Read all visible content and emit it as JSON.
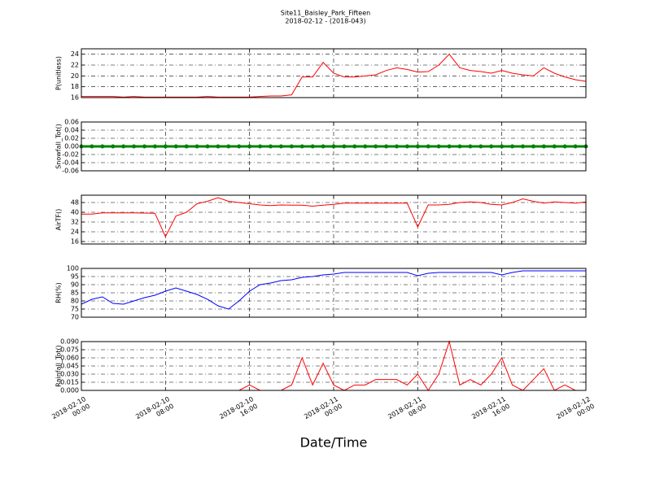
{
  "header": {
    "title": "Site11_Baisley_Park_Fifteen",
    "subtitle": "2018-02-12 - (2018-043)",
    "xlabel": "Date/Time"
  },
  "chart_data": [
    {
      "type": "line",
      "ylabel": "P(unitless)",
      "color": "#ff0000",
      "grid": true,
      "x": [
        0,
        1,
        2,
        3,
        4,
        5,
        6,
        7,
        8,
        9,
        10,
        11,
        12,
        13,
        14,
        15,
        16,
        17,
        18,
        19,
        20,
        21,
        22,
        23,
        24,
        25,
        26,
        27,
        28,
        29,
        30,
        31,
        32,
        33,
        34,
        35,
        36,
        37,
        38,
        39,
        40,
        41,
        42,
        43,
        44,
        45,
        46,
        47,
        48
      ],
      "values": [
        16.2,
        16.2,
        16.2,
        16.2,
        16.1,
        16.2,
        16.1,
        16.1,
        16.1,
        16.1,
        16.1,
        16.1,
        16.2,
        16.1,
        16.1,
        16.1,
        16.1,
        16.2,
        16.3,
        16.3,
        16.5,
        19.8,
        19.8,
        22.5,
        20.5,
        19.8,
        19.8,
        20,
        20.2,
        21,
        21.5,
        21.2,
        20.7,
        20.8,
        22,
        24,
        21.5,
        21,
        20.8,
        20.5,
        21,
        20.5,
        20.2,
        20,
        21.5,
        20.5,
        19.8,
        19.3,
        19
      ],
      "xlim": [
        0,
        48
      ],
      "xticks": [
        0,
        8,
        16,
        24,
        32,
        40,
        48
      ],
      "ylim": [
        16,
        25
      ],
      "yticks": [
        16,
        18,
        20,
        22,
        24
      ]
    },
    {
      "type": "line",
      "ylabel": "Snowfall_Tot()",
      "color": "#008000",
      "grid": true,
      "markers": true,
      "x": [
        0,
        1,
        2,
        3,
        4,
        5,
        6,
        7,
        8,
        9,
        10,
        11,
        12,
        13,
        14,
        15,
        16,
        17,
        18,
        19,
        20,
        21,
        22,
        23,
        24,
        25,
        26,
        27,
        28,
        29,
        30,
        31,
        32,
        33,
        34,
        35,
        36,
        37,
        38,
        39,
        40,
        41,
        42,
        43,
        44,
        45,
        46,
        47,
        48
      ],
      "values": [
        0,
        0,
        0,
        0,
        0,
        0,
        0,
        0,
        0,
        0,
        0,
        0,
        0,
        0,
        0,
        0,
        0,
        0,
        0,
        0,
        0,
        0,
        0,
        0,
        0,
        0,
        0,
        0,
        0,
        0,
        0,
        0,
        0,
        0,
        0,
        0,
        0,
        0,
        0,
        0,
        0,
        0,
        0,
        0,
        0,
        0,
        0,
        0,
        0
      ],
      "xlim": [
        0,
        48
      ],
      "xticks": [
        0,
        8,
        16,
        24,
        32,
        40,
        48
      ],
      "ylim": [
        -0.06,
        0.06
      ],
      "yticks": [
        -0.06,
        -0.04,
        -0.02,
        {
          "value": 0,
          "label": "0.00"
        },
        0.02,
        0.04,
        0.06
      ]
    },
    {
      "type": "line",
      "ylabel": "AirTF()",
      "color": "#ff0000",
      "grid": true,
      "x": [
        0,
        1,
        2,
        3,
        4,
        5,
        6,
        7,
        8,
        9,
        10,
        11,
        12,
        13,
        14,
        15,
        16,
        17,
        18,
        19,
        20,
        21,
        22,
        23,
        24,
        25,
        26,
        27,
        28,
        29,
        30,
        31,
        32,
        33,
        34,
        35,
        36,
        37,
        38,
        39,
        40,
        41,
        42,
        43,
        44,
        45,
        46,
        47,
        48
      ],
      "values": [
        38.5,
        38.5,
        39.5,
        39.5,
        39.5,
        39.5,
        39.3,
        39.2,
        20,
        37,
        40,
        47,
        49,
        52,
        49,
        48,
        47,
        46,
        45.5,
        46,
        45.8,
        45.8,
        45,
        45.8,
        46.5,
        47.5,
        47.5,
        47.5,
        47.5,
        47.5,
        47.5,
        47.5,
        28,
        46,
        46,
        46.5,
        48,
        48.5,
        48,
        46.5,
        46,
        48,
        51,
        49,
        47.5,
        48.5,
        48,
        47.5,
        48.5
      ],
      "xlim": [
        0,
        48
      ],
      "xticks": [
        0,
        8,
        16,
        24,
        32,
        40,
        48
      ],
      "ylim": [
        14,
        54
      ],
      "yticks": [
        16,
        24,
        32,
        40,
        48
      ]
    },
    {
      "type": "line",
      "ylabel": "RH(%)",
      "color": "#0000ff",
      "grid": true,
      "x": [
        0,
        1,
        2,
        3,
        4,
        5,
        6,
        7,
        8,
        9,
        10,
        11,
        12,
        13,
        14,
        15,
        16,
        17,
        18,
        19,
        20,
        21,
        22,
        23,
        24,
        25,
        26,
        27,
        28,
        29,
        30,
        31,
        32,
        33,
        34,
        35,
        36,
        37,
        38,
        39,
        40,
        41,
        42,
        43,
        44,
        45,
        46,
        47,
        48
      ],
      "values": [
        78,
        81,
        82.5,
        78.5,
        78,
        80,
        82,
        83.5,
        86,
        88,
        86,
        84,
        81,
        77,
        75,
        80,
        86,
        90,
        91,
        92.5,
        93,
        94.5,
        95,
        96,
        96.5,
        97.5,
        97.5,
        97.5,
        97.5,
        97.5,
        97.5,
        97.5,
        95.5,
        97,
        97.5,
        97.5,
        97.5,
        97.5,
        97.5,
        97.5,
        96,
        97.5,
        98.5,
        98.5,
        98.5,
        98.5,
        98.5,
        98.5,
        98.5
      ],
      "xlim": [
        0,
        48
      ],
      "xticks": [
        0,
        8,
        16,
        24,
        32,
        40,
        48
      ],
      "ylim": [
        70,
        100
      ],
      "yticks": [
        70,
        75,
        80,
        85,
        90,
        95,
        100
      ]
    },
    {
      "type": "line",
      "ylabel": "Rainfall_Tot()",
      "color": "#ff0000",
      "grid": true,
      "x": [
        0,
        1,
        2,
        3,
        4,
        5,
        6,
        7,
        8,
        9,
        10,
        11,
        12,
        13,
        14,
        15,
        16,
        17,
        18,
        19,
        20,
        21,
        22,
        23,
        24,
        25,
        26,
        27,
        28,
        29,
        30,
        31,
        32,
        33,
        34,
        35,
        36,
        37,
        38,
        39,
        40,
        41,
        42,
        43,
        44,
        45,
        46,
        47,
        48
      ],
      "values": [
        0,
        0,
        0,
        0,
        0,
        0,
        0,
        0,
        0,
        0,
        0,
        0,
        0,
        0,
        0,
        0,
        0.01,
        0,
        0,
        0,
        0.01,
        0.06,
        0.01,
        0.05,
        0.01,
        0,
        0.01,
        0.01,
        0.02,
        0.02,
        0.02,
        0.01,
        0.03,
        0,
        0.03,
        0.09,
        0.01,
        0.02,
        0.01,
        0.03,
        0.06,
        0.01,
        0,
        0.02,
        0.04,
        0,
        0.01,
        0,
        0
      ],
      "xlim": [
        0,
        48
      ],
      "xticks": [
        {
          "value": 0,
          "label": "2018-02-10\n00:00"
        },
        {
          "value": 8,
          "label": "2018-02-10\n08:00"
        },
        {
          "value": 16,
          "label": "2018-02-10\n16:00"
        },
        {
          "value": 24,
          "label": "2018-02-11\n00:00"
        },
        {
          "value": 32,
          "label": "2018-02-11\n08:00"
        },
        {
          "value": 40,
          "label": "2018-02-11\n16:00"
        },
        {
          "value": 48,
          "label": "2018-02-12\n00:00"
        }
      ],
      "ylim": [
        0,
        0.09
      ],
      "yticks": [
        {
          "value": 0,
          "label": "0.000"
        },
        {
          "value": 0.015,
          "label": "0.015"
        },
        {
          "value": 0.03,
          "label": "0.030"
        },
        {
          "value": 0.045,
          "label": "0.045"
        },
        {
          "value": 0.06,
          "label": "0.060"
        },
        {
          "value": 0.075,
          "label": "0.075"
        },
        {
          "value": 0.09,
          "label": "0.090"
        }
      ]
    }
  ]
}
